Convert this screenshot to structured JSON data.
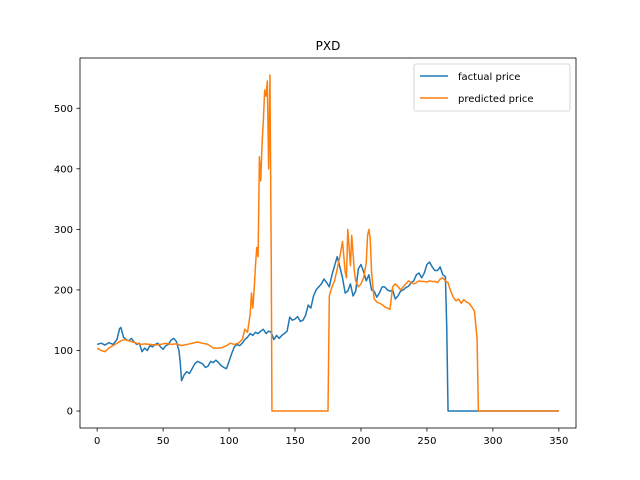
{
  "chart_data": {
    "type": "line",
    "title": "PXD",
    "xlabel": "",
    "ylabel": "",
    "xlim": [
      -13,
      363
    ],
    "ylim": [
      -28,
      583
    ],
    "xticks": [
      0,
      50,
      100,
      150,
      200,
      250,
      300,
      350
    ],
    "yticks": [
      0,
      100,
      200,
      300,
      400,
      500
    ],
    "grid": false,
    "legend_position": "top-right",
    "series": [
      {
        "name": "factual price",
        "color": "#1f77b4",
        "x": [
          0,
          3,
          6,
          9,
          12,
          15,
          17,
          18,
          20,
          22,
          24,
          26,
          28,
          30,
          32,
          34,
          36,
          38,
          40,
          42,
          44,
          46,
          48,
          50,
          52,
          54,
          56,
          58,
          60,
          62,
          63,
          64,
          66,
          68,
          70,
          72,
          74,
          76,
          78,
          80,
          82,
          84,
          86,
          88,
          90,
          92,
          94,
          96,
          98,
          100,
          102,
          104,
          106,
          108,
          110,
          112,
          114,
          116,
          118,
          120,
          122,
          124,
          126,
          128,
          130,
          132,
          134,
          136,
          138,
          140,
          142,
          144,
          146,
          148,
          150,
          152,
          154,
          156,
          158,
          160,
          162,
          164,
          166,
          168,
          170,
          172,
          174,
          176,
          178,
          180,
          182,
          184,
          186,
          188,
          190,
          192,
          194,
          196,
          198,
          200,
          202,
          204,
          206,
          208,
          210,
          212,
          214,
          216,
          218,
          220,
          222,
          224,
          226,
          228,
          230,
          232,
          234,
          236,
          238,
          240,
          242,
          244,
          246,
          248,
          250,
          252,
          254,
          256,
          258,
          260,
          262,
          264,
          265,
          266,
          268,
          270,
          280,
          290,
          300,
          310,
          320,
          330,
          340,
          350
        ],
        "values": [
          110,
          112,
          109,
          113,
          110,
          118,
          136,
          138,
          122,
          118,
          116,
          120,
          114,
          110,
          112,
          98,
          104,
          100,
          108,
          106,
          110,
          112,
          106,
          102,
          108,
          110,
          117,
          120,
          115,
          100,
          80,
          50,
          60,
          65,
          62,
          70,
          78,
          82,
          80,
          78,
          72,
          74,
          82,
          80,
          84,
          80,
          75,
          72,
          70,
          82,
          95,
          106,
          110,
          108,
          112,
          118,
          122,
          128,
          125,
          130,
          128,
          132,
          135,
          128,
          132,
          130,
          118,
          125,
          120,
          125,
          128,
          132,
          155,
          150,
          152,
          156,
          148,
          150,
          158,
          175,
          170,
          190,
          200,
          205,
          210,
          218,
          212,
          205,
          225,
          240,
          255,
          238,
          220,
          195,
          198,
          210,
          190,
          198,
          235,
          242,
          230,
          215,
          225,
          200,
          198,
          188,
          195,
          205,
          205,
          200,
          198,
          200,
          185,
          190,
          198,
          200,
          204,
          206,
          212,
          215,
          225,
          228,
          220,
          228,
          242,
          246,
          238,
          232,
          232,
          238,
          225,
          222,
          140,
          0,
          0,
          0,
          0,
          0,
          0,
          0,
          0,
          0,
          0,
          0
        ]
      },
      {
        "name": "predicted price",
        "color": "#ff7f0e",
        "x": [
          0,
          3,
          6,
          9,
          12,
          15,
          18,
          21,
          24,
          27,
          30,
          33,
          36,
          40,
          44,
          48,
          52,
          56,
          60,
          64,
          68,
          72,
          76,
          80,
          84,
          88,
          92,
          95,
          98,
          101,
          104,
          107,
          110,
          112,
          114,
          116,
          117,
          118,
          119,
          120,
          121,
          122,
          123,
          124,
          125,
          126,
          127,
          128,
          129,
          130,
          131,
          132,
          132.5,
          133,
          134,
          150,
          165,
          175,
          176,
          178,
          180,
          182,
          184,
          186,
          188,
          189,
          190,
          191,
          192,
          193,
          194,
          195,
          196,
          198,
          200,
          202,
          204,
          205,
          206,
          207,
          208,
          210,
          212,
          214,
          216,
          218,
          220,
          222,
          224,
          226,
          228,
          230,
          232,
          234,
          236,
          238,
          240,
          242,
          244,
          246,
          248,
          250,
          252,
          254,
          256,
          258,
          260,
          262,
          264,
          266,
          268,
          270,
          272,
          274,
          276,
          278,
          280,
          282,
          284,
          286,
          288,
          289,
          290,
          291,
          300,
          320,
          340,
          350
        ],
        "values": [
          104,
          100,
          98,
          104,
          108,
          112,
          116,
          118,
          116,
          114,
          112,
          110,
          111,
          110,
          109,
          110,
          112,
          110,
          111,
          108,
          110,
          112,
          114,
          112,
          110,
          104,
          104,
          105,
          108,
          112,
          110,
          112,
          118,
          135,
          130,
          160,
          195,
          170,
          200,
          240,
          270,
          255,
          420,
          380,
          440,
          480,
          530,
          520,
          545,
          400,
          555,
          240,
          0,
          0,
          0,
          0,
          0,
          0,
          190,
          205,
          215,
          235,
          255,
          280,
          230,
          220,
          300,
          270,
          240,
          290,
          260,
          230,
          215,
          205,
          210,
          220,
          245,
          290,
          300,
          285,
          230,
          185,
          180,
          178,
          176,
          172,
          170,
          168,
          205,
          210,
          206,
          200,
          205,
          210,
          215,
          212,
          210,
          212,
          215,
          214,
          214,
          213,
          215,
          214,
          214,
          212,
          218,
          220,
          215,
          212,
          198,
          188,
          182,
          185,
          178,
          184,
          180,
          178,
          172,
          165,
          120,
          0,
          0,
          0,
          0,
          0,
          0,
          0
        ]
      }
    ]
  }
}
